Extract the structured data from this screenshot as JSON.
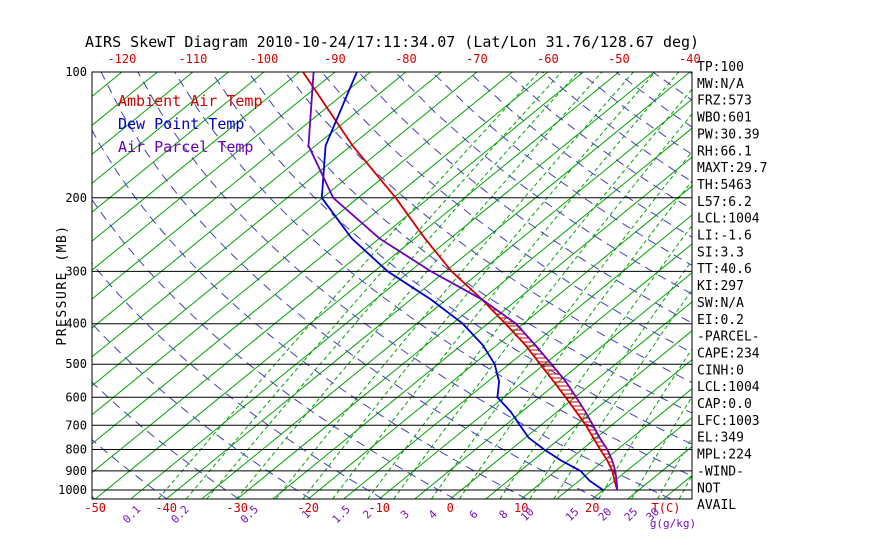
{
  "title": "AIRS SkewT Diagram 2010-10-24/17:11:34.07 (Lat/Lon 31.76/128.67 deg)",
  "axes": {
    "y_label": "PRESSURE (MB)",
    "x_label": "T(C)",
    "mixing_unit_label": "g(g/kg)"
  },
  "legend": [
    {
      "label": "Ambient Air Temp",
      "color": "#d40000"
    },
    {
      "label": "Dew Point Temp",
      "color": "#0000cc"
    },
    {
      "label": "Air Parcel Temp",
      "color": "#6a00b8"
    }
  ],
  "side_panel": [
    "TP:100",
    "MW:N/A",
    "FRZ:573",
    "WBO:601",
    "PW:30.39",
    "RH:66.1",
    "MAXT:29.7",
    "TH:5463",
    "L57:6.2",
    "LCL:1004",
    "LI:-1.6",
    "SI:3.3",
    "TT:40.6",
    "KI:297",
    "SW:N/A",
    "EI:0.2",
    "-PARCEL-",
    "CAPE:234",
    "CINH:0",
    "LCL:1004",
    "CAP:0.0",
    "LFC:1003",
    "EL:349",
    "MPL:224",
    "-WIND-",
    "NOT",
    "AVAIL"
  ],
  "chart_data": {
    "type": "line",
    "variant": "skew-t-log-p",
    "pressure_axis": {
      "label": "PRESSURE (MB)",
      "ticks": [
        100,
        200,
        300,
        400,
        500,
        600,
        700,
        800,
        900,
        1000
      ],
      "top": 100,
      "bottom": 1050
    },
    "temp_axis": {
      "label": "T(C)",
      "top_labels_c": [
        -120,
        -110,
        -100,
        -90,
        -80,
        -70,
        -60,
        -50,
        -40
      ],
      "bottom_labels_c": [
        -50,
        -40,
        -30,
        -20,
        -10,
        0,
        10,
        20
      ]
    },
    "mixing_ratio": {
      "labels_gkg": [
        0.1,
        0.2,
        0.5,
        1,
        1.5,
        2,
        3,
        4,
        6,
        8,
        10,
        15,
        20,
        25,
        30
      ],
      "drawn_gkg": [
        0.1,
        0.15,
        0.2,
        0.3,
        0.5,
        0.7,
        1,
        1.5,
        2,
        3,
        4,
        6,
        8,
        10,
        15,
        20,
        25,
        30
      ],
      "unit": "g(g/kg)",
      "color": "#00a400"
    },
    "isotherms": {
      "min_c": -130,
      "max_c": 45,
      "step_c": 5,
      "color": "#00a400"
    },
    "dry_adiabats": {
      "min_theta_k": 220,
      "max_theta_k": 470,
      "step_k": 10,
      "color": "#4040c0"
    },
    "series": [
      {
        "name": "Ambient Air Temp",
        "color": "#d40000",
        "points_p_t": [
          [
            1000,
            22
          ],
          [
            950,
            20
          ],
          [
            900,
            18
          ],
          [
            850,
            15.5
          ],
          [
            800,
            12.6
          ],
          [
            750,
            9.6
          ],
          [
            700,
            6.4
          ],
          [
            650,
            2.7
          ],
          [
            600,
            -1.3
          ],
          [
            550,
            -5.7
          ],
          [
            500,
            -10.6
          ],
          [
            450,
            -16
          ],
          [
            400,
            -22.5
          ],
          [
            350,
            -30
          ],
          [
            300,
            -39.1
          ],
          [
            250,
            -48.6
          ],
          [
            200,
            -59.7
          ],
          [
            150,
            -74.8
          ],
          [
            100,
            -94.5
          ]
        ]
      },
      {
        "name": "Dew Point Temp",
        "color": "#0000cc",
        "points_p_t": [
          [
            1000,
            20
          ],
          [
            950,
            16.5
          ],
          [
            900,
            13.5
          ],
          [
            850,
            9
          ],
          [
            800,
            4.7
          ],
          [
            750,
            0.5
          ],
          [
            700,
            -2.9
          ],
          [
            650,
            -6.5
          ],
          [
            600,
            -10.9
          ],
          [
            550,
            -13.4
          ],
          [
            500,
            -17
          ],
          [
            450,
            -22
          ],
          [
            400,
            -28.5
          ],
          [
            350,
            -37.2
          ],
          [
            300,
            -48.1
          ],
          [
            250,
            -58.9
          ],
          [
            200,
            -70.1
          ],
          [
            150,
            -78.6
          ],
          [
            100,
            -86.9
          ]
        ]
      },
      {
        "name": "Air Parcel Temp",
        "color": "#6a00b8",
        "points_p_t": [
          [
            1000,
            22
          ],
          [
            950,
            20.3
          ],
          [
            900,
            18.4
          ],
          [
            850,
            16.2
          ],
          [
            800,
            13.6
          ],
          [
            750,
            10.5
          ],
          [
            700,
            7.4
          ],
          [
            650,
            4.0
          ],
          [
            600,
            0.2
          ],
          [
            550,
            -4.0
          ],
          [
            500,
            -9.0
          ],
          [
            450,
            -14.6
          ],
          [
            400,
            -21.0
          ],
          [
            350,
            -30
          ],
          [
            300,
            -42
          ],
          [
            250,
            -55
          ],
          [
            200,
            -68.5
          ],
          [
            150,
            -81
          ],
          [
            100,
            -93
          ]
        ]
      }
    ],
    "cape_hatch": {
      "between": [
        "Ambient Air Temp",
        "Air Parcel Temp"
      ],
      "from_mb": 1000,
      "to_mb": 350,
      "color": "#d40000"
    }
  }
}
